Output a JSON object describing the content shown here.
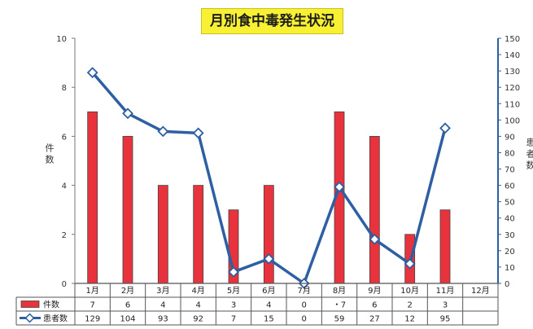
{
  "chart_data": {
    "type": "bar+line",
    "title": "月別食中毒発生状況",
    "categories": [
      "1月",
      "2月",
      "3月",
      "4月",
      "5月",
      "6月",
      "7月",
      "8月",
      "9月",
      "10月",
      "11月",
      "12月"
    ],
    "left_axis": {
      "label": "件数",
      "min": 0,
      "max": 10,
      "ticks": [
        "0",
        "2",
        "4",
        "6",
        "8",
        "10"
      ]
    },
    "right_axis": {
      "label": "患者数",
      "min": 0,
      "max": 150,
      "ticks": [
        "0",
        "10",
        "20",
        "30",
        "40",
        "50",
        "60",
        "70",
        "80",
        "90",
        "100",
        "110",
        "120",
        "130",
        "140",
        "150"
      ]
    },
    "series": [
      {
        "name": "件数",
        "type": "bar",
        "axis": "left",
        "color": "#e8323c",
        "values": [
          7,
          6,
          4,
          4,
          3,
          4,
          0,
          7,
          6,
          2,
          3,
          null
        ],
        "table_values": [
          "7",
          "6",
          "4",
          "4",
          "3",
          "4",
          "0",
          "・7",
          "6",
          "2",
          "3",
          ""
        ]
      },
      {
        "name": "患者数",
        "type": "line",
        "axis": "right",
        "color": "#2e5fa3",
        "values": [
          129,
          104,
          93,
          92,
          7,
          15,
          0,
          59,
          27,
          12,
          95,
          null
        ],
        "table_values": [
          "129",
          "104",
          "93",
          "92",
          "7",
          "15",
          "0",
          "59",
          "27",
          "12",
          "95",
          ""
        ]
      }
    ],
    "grid": false,
    "legend": "table-below"
  }
}
